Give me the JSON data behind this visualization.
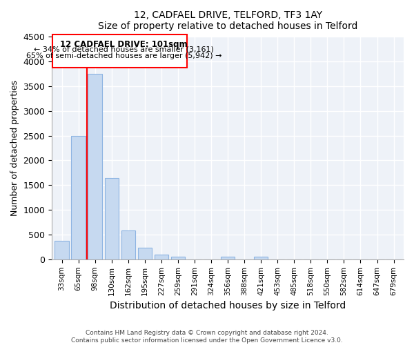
{
  "title": "12, CADFAEL DRIVE, TELFORD, TF3 1AY",
  "subtitle": "Size of property relative to detached houses in Telford",
  "xlabel": "Distribution of detached houses by size in Telford",
  "ylabel": "Number of detached properties",
  "footer_line1": "Contains HM Land Registry data © Crown copyright and database right 2024.",
  "footer_line2": "Contains public sector information licensed under the Open Government Licence v3.0.",
  "annotation_line1": "12 CADFAEL DRIVE: 101sqm",
  "annotation_line2": "← 34% of detached houses are smaller (3,161)",
  "annotation_line3": "65% of semi-detached houses are larger (5,942) →",
  "bar_labels": [
    "33sqm",
    "65sqm",
    "98sqm",
    "130sqm",
    "162sqm",
    "195sqm",
    "227sqm",
    "259sqm",
    "291sqm",
    "324sqm",
    "356sqm",
    "388sqm",
    "421sqm",
    "453sqm",
    "485sqm",
    "518sqm",
    "550sqm",
    "582sqm",
    "614sqm",
    "647sqm",
    "679sqm"
  ],
  "bar_values": [
    380,
    2500,
    3750,
    1640,
    590,
    240,
    100,
    55,
    0,
    0,
    50,
    0,
    50,
    0,
    0,
    0,
    0,
    0,
    0,
    0,
    0
  ],
  "bar_color": "#c6d9f0",
  "bar_edge_color": "#8db4e2",
  "redline_x": 1.5,
  "ylim": [
    0,
    4500
  ],
  "yticks": [
    0,
    500,
    1000,
    1500,
    2000,
    2500,
    3000,
    3500,
    4000,
    4500
  ],
  "bg_color": "#eef2f8"
}
